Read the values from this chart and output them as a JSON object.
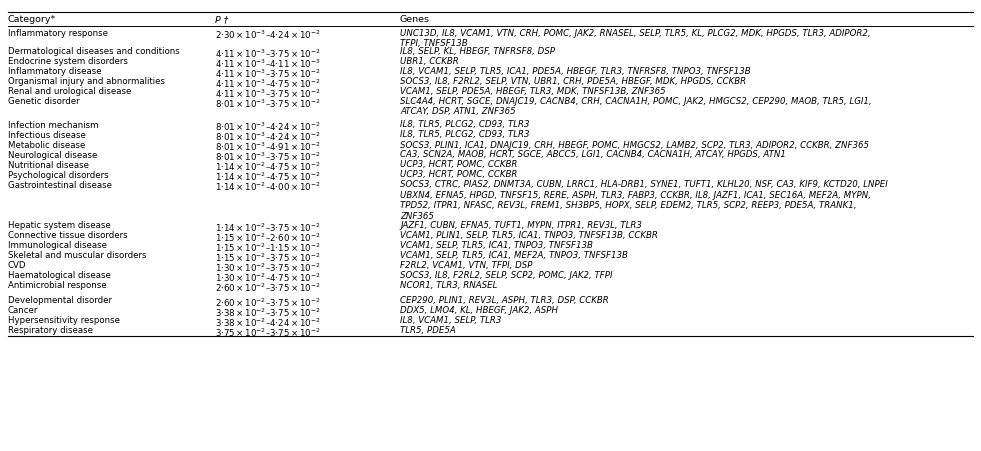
{
  "col_headers": [
    "Category*",
    "P †",
    "Genes"
  ],
  "rows": [
    {
      "category": "Inflammatory response",
      "p_value": "$2{\\cdot}30\\times10^{-3}$–$4{\\cdot}24 \\times 10^{-2}$",
      "genes": "UNC13D, IL8, VCAM1, VTN, CRH, POMC, JAK2, RNASEL, SELP, TLR5, KL, PLCG2, MDK, HPGDS, TLR3, ADIPOR2,\nTFPI, TNFSF13B",
      "gap_before": false
    },
    {
      "category": "Dermatological diseases and conditions",
      "p_value": "$4{\\cdot}11 \\times 10^{-3}$–$3{\\cdot}75 \\times 10^{-2}$",
      "genes": "IL8, SELP, KL, HBEGF, TNFRSF8, DSP",
      "gap_before": false
    },
    {
      "category": "Endocrine system disorders",
      "p_value": "$4{\\cdot}11 \\times 10^{-3}$–$4{\\cdot}11 \\times 10^{-3}$",
      "genes": "UBR1, CCKBR",
      "gap_before": false
    },
    {
      "category": "Inflammatory disease",
      "p_value": "$4{\\cdot}11 \\times 10^{-3}$–$3{\\cdot}75 \\times 10^{-2}$",
      "genes": "IL8, VCAM1, SELP, TLR5, ICA1, PDE5A, HBEGF, TLR3, TNFRSF8, TNPO3, TNFSF13B",
      "gap_before": false
    },
    {
      "category": "Organismal injury and abnormalities",
      "p_value": "$4{\\cdot}11 \\times 10^{-3}$–$4{\\cdot}75 \\times 10^{-2}$",
      "genes": "SOCS3, IL8, F2RL2, SELP, VTN, UBR1, CRH, PDE5A, HBEGF, MDK, HPGDS, CCKBR",
      "gap_before": false
    },
    {
      "category": "Renal and urological disease",
      "p_value": "$4{\\cdot}11 \\times 10^{-3}$–$3{\\cdot}75 \\times 10^{-2}$",
      "genes": "VCAM1, SELP, PDE5A, HBEGF, TLR3, MDK, TNFSF13B, ZNF365",
      "gap_before": false
    },
    {
      "category": "Genetic disorder",
      "p_value": "$8{\\cdot}01 \\times 10^{-3}$–$3{\\cdot}75 \\times 10^{-2}$",
      "genes": "SLC4A4, HCRT, SGCE, DNAJC19, CACNB4, CRH, CACNA1H, POMC, JAK2, HMGCS2, CEP290, MAOB, TLR5, LGI1,\nATCAY, DSP, ATN1, ZNF365",
      "gap_before": false
    },
    {
      "category": "Infection mechanism",
      "p_value": "$8{\\cdot}01 \\times 10^{-3}$–$4{\\cdot}24 \\times 10^{-2}$",
      "genes": "IL8, TLR5, PLCG2, CD93, TLR3",
      "gap_before": true
    },
    {
      "category": "Infectious disease",
      "p_value": "$8{\\cdot}01 \\times 10^{-3}$–$4{\\cdot}24 \\times 10^{-2}$",
      "genes": "IL8, TLR5, PLCG2, CD93, TLR3",
      "gap_before": false
    },
    {
      "category": "Metabolic disease",
      "p_value": "$8{\\cdot}01 \\times 10^{-3}$–$4{\\cdot}91 \\times 10^{-2}$",
      "genes": "SOCS3, PLIN1, ICA1, DNAJC19, CRH, HBEGF, POMC, HMGCS2, LAMB2, SCP2, TLR3, ADIPOR2, CCKBR, ZNF365",
      "gap_before": false
    },
    {
      "category": "Neurological disease",
      "p_value": "$8{\\cdot}01 \\times 10^{-3}$–$3{\\cdot}75 \\times 10^{-2}$",
      "genes": "CA3, SCN2A, MAOB, HCRT, SGCE, ABCC5, LGI1, CACNB4, CACNA1H, ATCAY, HPGDS, ATN1",
      "gap_before": false
    },
    {
      "category": "Nutritional disease",
      "p_value": "$1{\\cdot}14 \\times 10^{-2}$–$4{\\cdot}75 \\times 10^{-2}$",
      "genes": "UCP3, HCRT, POMC, CCKBR",
      "gap_before": false
    },
    {
      "category": "Psychological disorders",
      "p_value": "$1{\\cdot}14 \\times 10^{-2}$–$4{\\cdot}75 \\times 10^{-2}$",
      "genes": "UCP3, HCRT, POMC, CCKBR",
      "gap_before": false
    },
    {
      "category": "Gastrointestinal disease",
      "p_value": "$1{\\cdot}14 \\times 10^{-2}$–$4{\\cdot}00 \\times 10^{-2}$",
      "genes": "SOCS3, CTRC, PIAS2, DNMT3A, CUBN, LRRC1, HLA-DRB1, SYNE1, TUFT1, KLHL20, NSF, CA3, KIF9, KCTD20, LNPEI\nUBXN4, EFNA5, HPGD, TNFSF15, RERE, ASPH, TLR3, FABP3, CCKBR, IL8, JAZF1, ICA1, SEC16A, MEF2A, MYPN,\nTPD52, ITPR1, NFASC, REV3L, FREM1, SH3BP5, HOPX, SELP, EDEM2, TLR5, SCP2, REEP3, PDE5A, TRANK1,\nZNF365",
      "gap_before": false
    },
    {
      "category": "Hepatic system disease",
      "p_value": "$1{\\cdot}14 \\times 10^{-2}$–$3{\\cdot}75 \\times 10^{-2}$",
      "genes": "JAZF1, CUBN, EFNA5, TUFT1, MYPN, ITPR1, REV3L, TLR3",
      "gap_before": true
    },
    {
      "category": "Connective tissue disorders",
      "p_value": "$1{\\cdot}15 \\times 10^{-2}$–$2{\\cdot}60 \\times 10^{-2}$",
      "genes": "VCAM1, PLIN1, SELP, TLR5, ICA1, TNPO3, TNFSF13B, CCKBR",
      "gap_before": false
    },
    {
      "category": "Immunological disease",
      "p_value": "$1{\\cdot}15 \\times 10^{-2}$–$1{\\cdot}15 \\times 10^{-2}$",
      "genes": "VCAM1, SELP, TLR5, ICA1, TNPO3, TNFSF13B",
      "gap_before": false
    },
    {
      "category": "Skeletal and muscular disorders",
      "p_value": "$1{\\cdot}15 \\times 10^{-2}$–$3{\\cdot}75 \\times 10^{-2}$",
      "genes": "VCAM1, SELP, TLR5, ICA1, MEF2A, TNPO3, TNFSF13B",
      "gap_before": false
    },
    {
      "category": "CVD",
      "p_value": "$1{\\cdot}30 \\times 10^{-2}$–$3{\\cdot}75 \\times 10^{-2}$",
      "genes": "F2RL2, VCAM1, VTN, TFPI, DSP",
      "gap_before": false
    },
    {
      "category": "Haematological disease",
      "p_value": "$1{\\cdot}30 \\times 10^{-2}$–$4{\\cdot}75 \\times 10^{-2}$",
      "genes": "SOCS3, IL8, F2RL2, SELP, SCP2, POMC, JAK2, TFPI",
      "gap_before": false
    },
    {
      "category": "Antimicrobial response",
      "p_value": "$2{\\cdot}60 \\times 10^{-2}$–$3{\\cdot}75 \\times 10^{-2}$",
      "genes": "NCOR1, TLR3, RNASEL",
      "gap_before": false
    },
    {
      "category": "Developmental disorder",
      "p_value": "$2{\\cdot}60 \\times 10^{-2}$–$3{\\cdot}75 \\times 10^{-2}$",
      "genes": "CEP290, PLIN1, REV3L, ASPH, TLR3, DSP, CCKBR",
      "gap_before": true
    },
    {
      "category": "Cancer",
      "p_value": "$3{\\cdot}38 \\times 10^{-2}$–$3{\\cdot}75 \\times 10^{-2}$",
      "genes": "DDX5, LMO4, KL, HBEGF, JAK2, ASPH",
      "gap_before": false
    },
    {
      "category": "Hypersensitivity response",
      "p_value": "$3{\\cdot}38 \\times 10^{-2}$–$4{\\cdot}24 \\times 10^{-2}$",
      "genes": "IL8, VCAM1, SELP, TLR3",
      "gap_before": false
    },
    {
      "category": "Respiratory disease",
      "p_value": "$3{\\cdot}75 \\times 10^{-2}$–$3{\\cdot}75 \\times 10^{-2}$",
      "genes": "TLR5, PDE5A",
      "gap_before": false
    }
  ],
  "bg_color": "#ffffff",
  "text_color": "#000000",
  "font_size": 6.2,
  "header_font_size": 6.8,
  "figsize": [
    9.81,
    4.51
  ]
}
